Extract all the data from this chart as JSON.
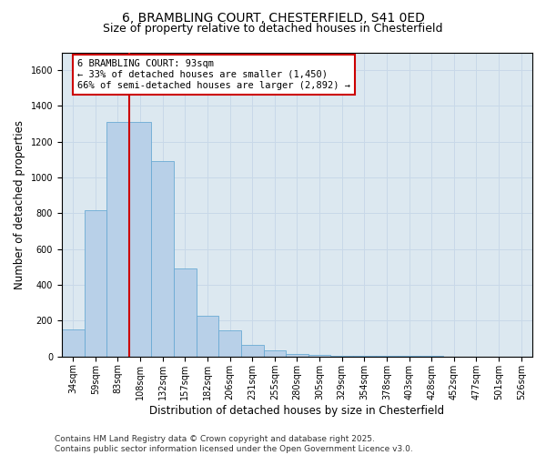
{
  "title": "6, BRAMBLING COURT, CHESTERFIELD, S41 0ED",
  "subtitle": "Size of property relative to detached houses in Chesterfield",
  "xlabel": "Distribution of detached houses by size in Chesterfield",
  "ylabel": "Number of detached properties",
  "categories": [
    "34sqm",
    "59sqm",
    "83sqm",
    "108sqm",
    "132sqm",
    "157sqm",
    "182sqm",
    "206sqm",
    "231sqm",
    "255sqm",
    "280sqm",
    "305sqm",
    "329sqm",
    "354sqm",
    "378sqm",
    "403sqm",
    "428sqm",
    "452sqm",
    "477sqm",
    "501sqm",
    "526sqm"
  ],
  "values": [
    150,
    820,
    1310,
    1310,
    1090,
    490,
    230,
    145,
    65,
    35,
    15,
    10,
    5,
    3,
    3,
    2,
    2,
    1,
    0,
    0,
    0
  ],
  "bar_color": "#b8d0e8",
  "bar_edge_color": "#6aaad4",
  "vline_color": "#cc0000",
  "vline_x": 2.5,
  "annotation_text": "6 BRAMBLING COURT: 93sqm\n← 33% of detached houses are smaller (1,450)\n66% of semi-detached houses are larger (2,892) →",
  "annotation_box_color": "#ffffff",
  "annotation_box_edge": "#cc0000",
  "ylim": [
    0,
    1700
  ],
  "yticks": [
    0,
    200,
    400,
    600,
    800,
    1000,
    1200,
    1400,
    1600
  ],
  "grid_color": "#c8d8e8",
  "background_color": "#dce8f0",
  "footer": "Contains HM Land Registry data © Crown copyright and database right 2025.\nContains public sector information licensed under the Open Government Licence v3.0.",
  "title_fontsize": 10,
  "subtitle_fontsize": 9,
  "axis_label_fontsize": 8.5,
  "tick_fontsize": 7,
  "annotation_fontsize": 7.5,
  "footer_fontsize": 6.5
}
